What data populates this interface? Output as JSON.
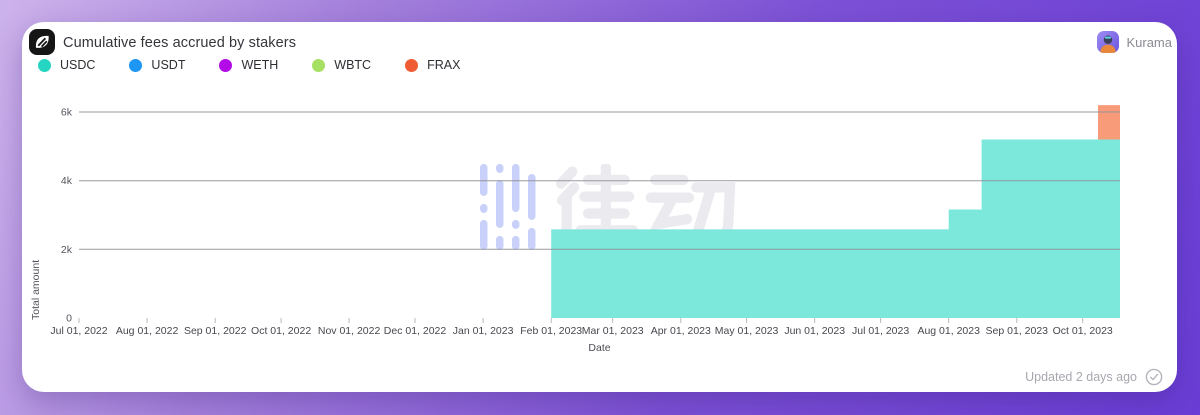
{
  "header": {
    "title": "Cumulative fees accrued by stakers",
    "user": "Kurama"
  },
  "legend": [
    {
      "label": "USDC",
      "color": "#25d5c1"
    },
    {
      "label": "USDT",
      "color": "#1e96f3"
    },
    {
      "label": "WETH",
      "color": "#b30be8"
    },
    {
      "label": "WBTC",
      "color": "#a6e063"
    },
    {
      "label": "FRAX",
      "color": "#ef5b33"
    }
  ],
  "watermark": {
    "text": "律动",
    "logo": "blockbeats-dots-logo"
  },
  "footer": {
    "updated": "Updated 2 days ago",
    "status_icon": "check-circle-icon"
  },
  "chart_data": {
    "type": "area",
    "subtype": "stacked-step-area",
    "title": "Cumulative fees accrued by stakers",
    "xlabel": "Date",
    "ylabel": "Total amount",
    "grid": "horizontal",
    "legend_position": "top-left",
    "ylim": [
      0,
      6000
    ],
    "x_domain": [
      "Jul 01, 2022",
      "Oct 18, 2023"
    ],
    "x_ticks": [
      "Jul 01, 2022",
      "Aug 01, 2022",
      "Sep 01, 2022",
      "Oct 01, 2022",
      "Nov 01, 2022",
      "Dec 01, 2022",
      "Jan 01, 2023",
      "Feb 01, 2023",
      "Mar 01, 2023",
      "Apr 01, 2023",
      "May 01, 2023",
      "Jun 01, 2023",
      "Jul 01, 2023",
      "Aug 01, 2023",
      "Sep 01, 2023",
      "Oct 01, 2023"
    ],
    "y_ticks": [
      {
        "label": "0",
        "value": 0
      },
      {
        "label": "2k",
        "value": 2000
      },
      {
        "label": "4k",
        "value": 4000
      },
      {
        "label": "6k",
        "value": 6000
      }
    ],
    "series": [
      {
        "name": "USDC",
        "fill": "#7ce8dc",
        "line_color": "#25d5c1",
        "steps": [
          {
            "from": "Feb 01, 2023",
            "to": "Aug 01, 2023",
            "value": 2580
          },
          {
            "from": "Aug 01, 2023",
            "to": "Aug 16, 2023",
            "value": 3160
          },
          {
            "from": "Aug 16, 2023",
            "to": "Oct 18, 2023",
            "value": 5200
          }
        ]
      },
      {
        "name": "USDT",
        "fill": "#1e96f3",
        "steps": []
      },
      {
        "name": "WETH",
        "fill": "#b30be8",
        "steps": []
      },
      {
        "name": "WBTC",
        "fill": "#a6e063",
        "steps": []
      },
      {
        "name": "FRAX",
        "fill": "#f79b78",
        "line_color": "#ef5b33",
        "steps": [
          {
            "from": "Oct 08, 2023",
            "to": "Oct 18, 2023",
            "value": 1000
          }
        ]
      }
    ]
  }
}
